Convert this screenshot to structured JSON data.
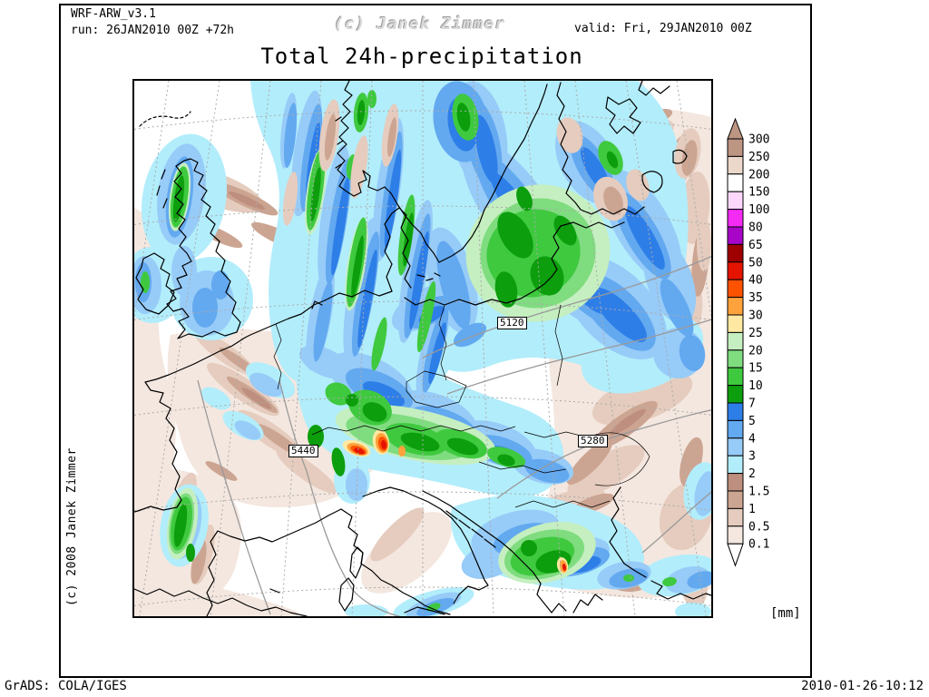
{
  "header": {
    "model": "WRF-ARW_v3.1",
    "run": "run: 26JAN2010 00Z +72h",
    "valid": "valid: Fri, 29JAN2010 00Z",
    "watermark": "(c) Janek Zimmer",
    "title": "Total 24h-precipitation"
  },
  "map": {
    "region": "Europe",
    "credit_vertical": "(c) 2008 Janek Zimmer",
    "contour_labels": [
      {
        "text": "5120"
      },
      {
        "text": "5440"
      },
      {
        "text": "5280"
      }
    ]
  },
  "legend": {
    "unit": "[mm]",
    "labels": [
      "300",
      "250",
      "200",
      "150",
      "100",
      "80",
      "65",
      "50",
      "40",
      "35",
      "30",
      "25",
      "20",
      "15",
      "10",
      "7",
      "5",
      "4",
      "3",
      "2",
      "1.5",
      "1",
      "0.5",
      "0.1"
    ],
    "band_colors_top_to_bottom": [
      "#BD9583",
      "#EBD8CB",
      "#FFFFFF",
      "#FBD7FB",
      "#F32BF3",
      "#A805C8",
      "#9E0000",
      "#E51400",
      "#FD5200",
      "#FFA23C",
      "#FFE9A2",
      "#C5EFC0",
      "#7FDC7F",
      "#3FC93F",
      "#0C9E0C",
      "#2E7EE8",
      "#63A9F0",
      "#97CBF8",
      "#B2EDFB",
      "#BE8F7E",
      "#CCA592",
      "#E5CCBE",
      "#F4E7DF"
    ],
    "over_color": "#BD9583",
    "under_color": "#FFFFFF"
  },
  "footer": {
    "left": "GrADS: COLA/IGES",
    "right": "2010-01-26-10:12"
  }
}
